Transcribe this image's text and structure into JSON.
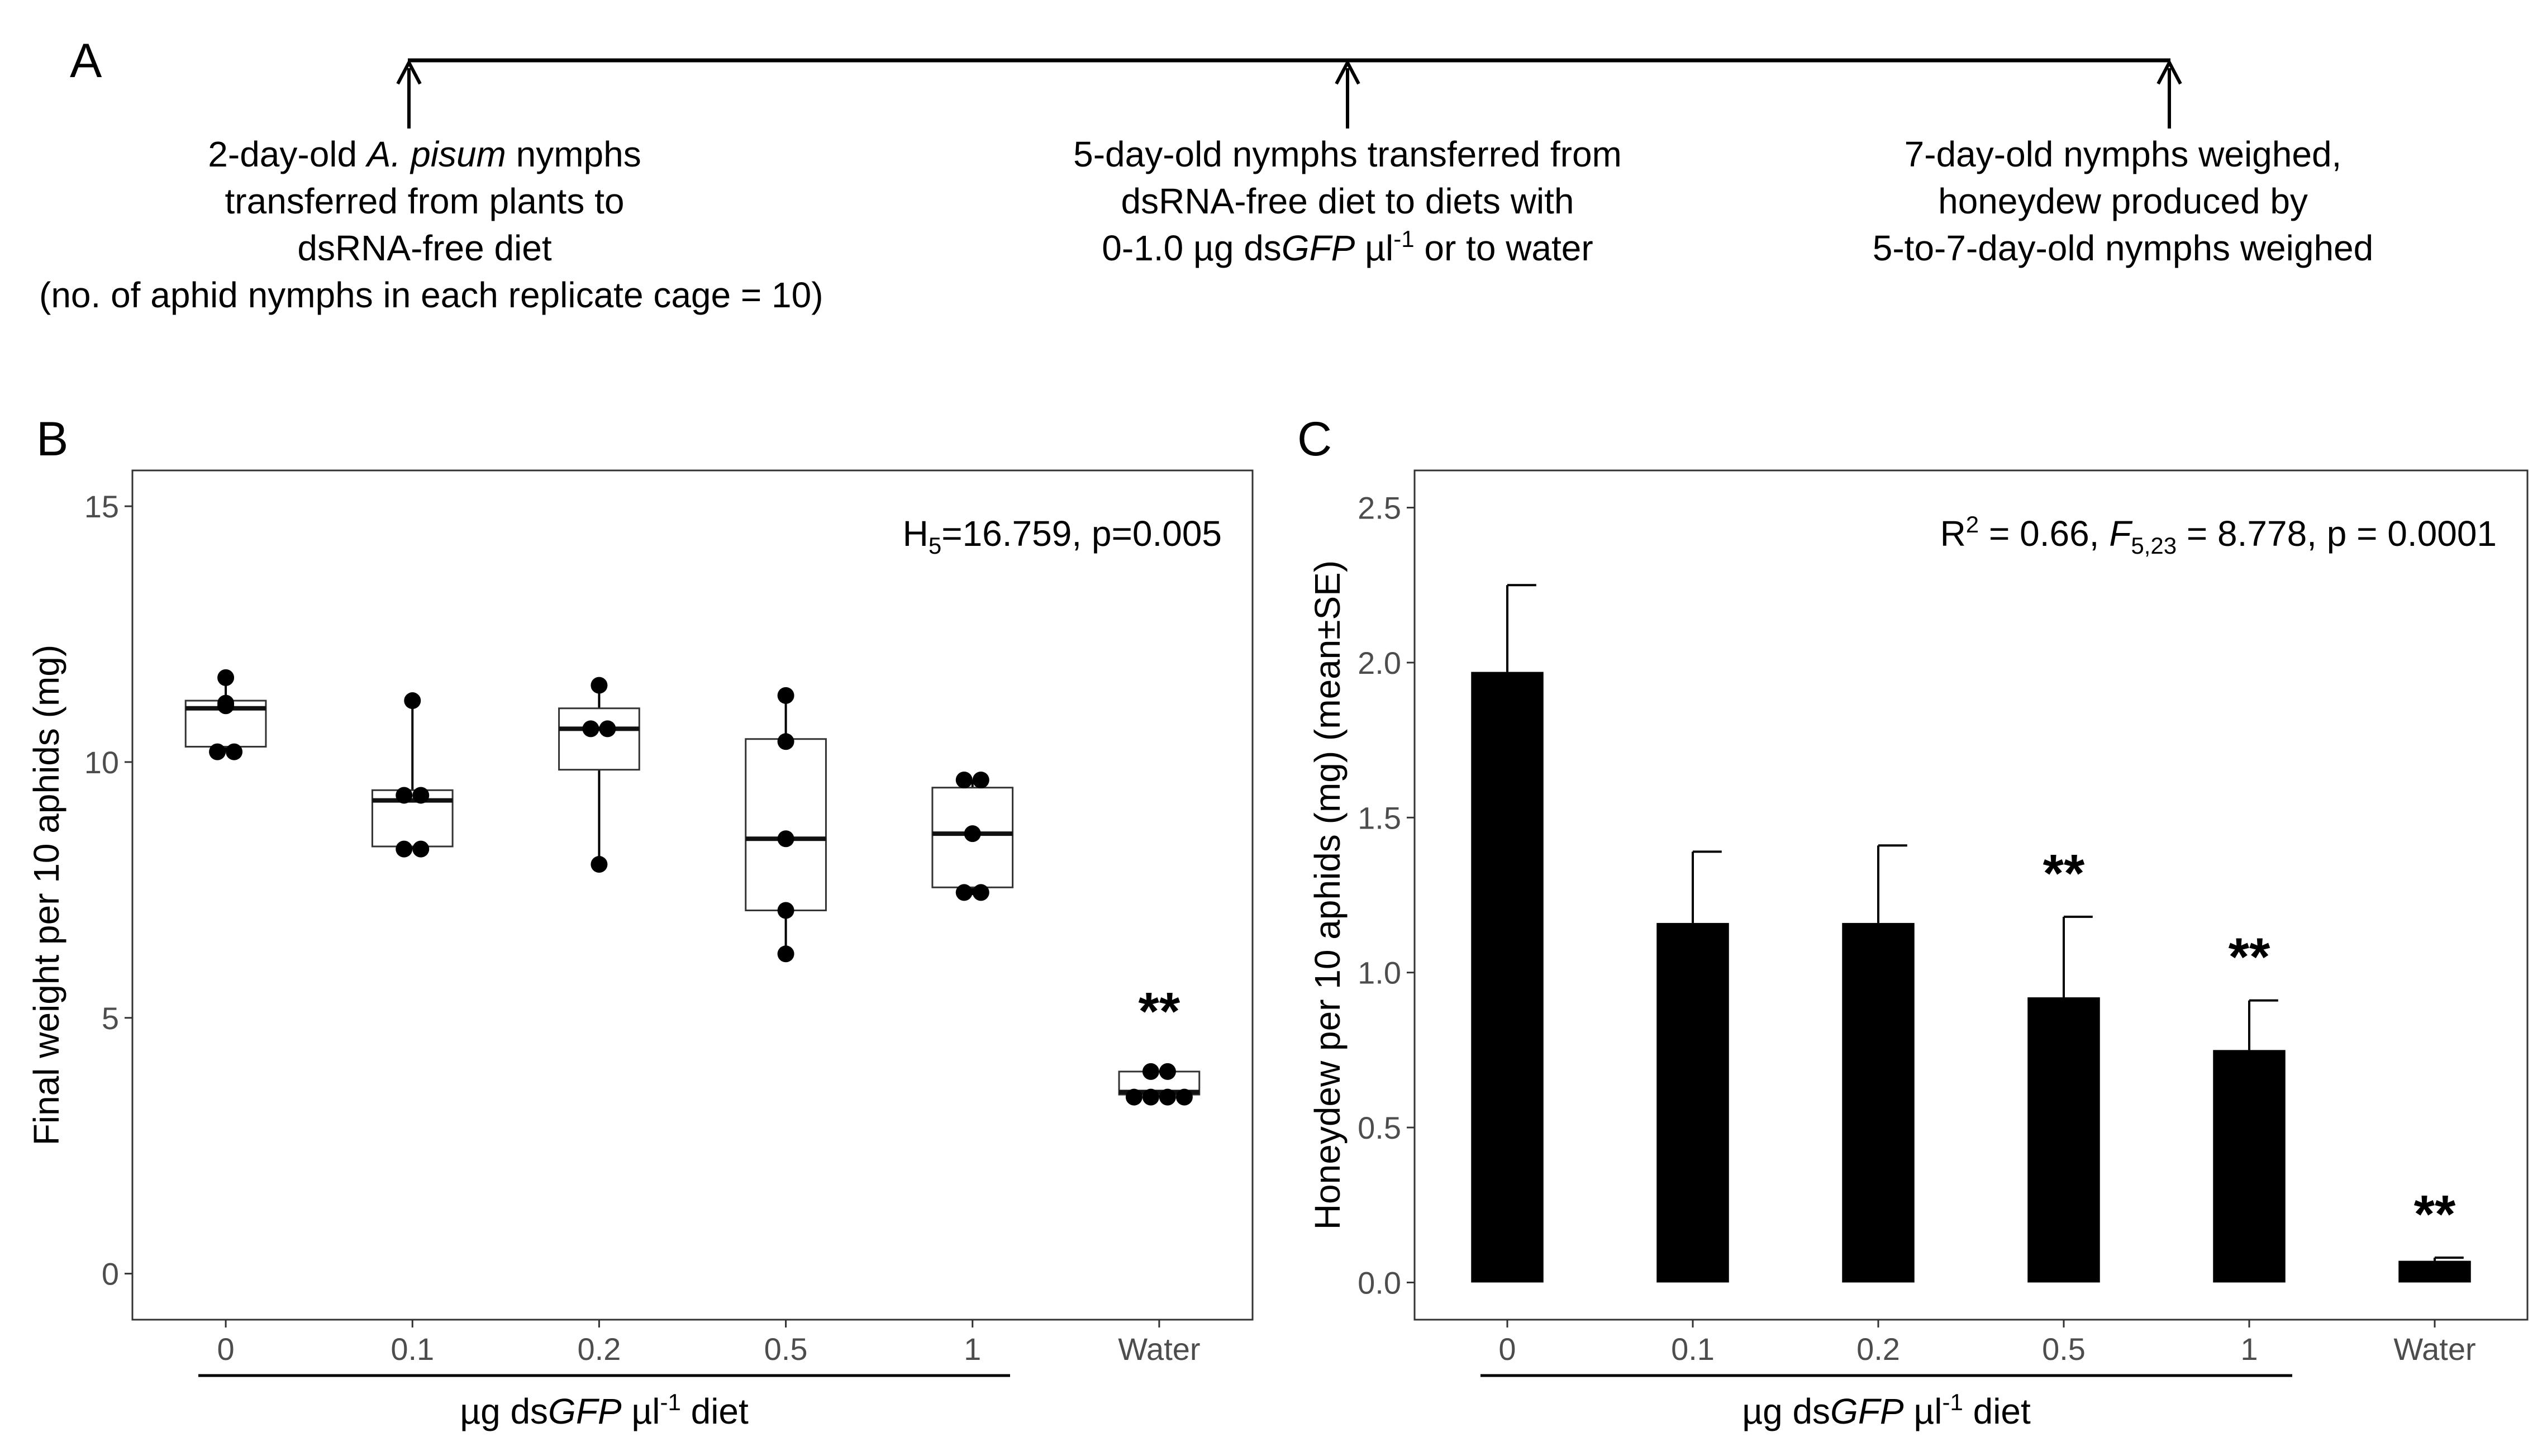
{
  "panel_a": {
    "label": "A",
    "steps": [
      {
        "lines": [
          [
            {
              "t": "2-day-old "
            },
            {
              "t": "A. pisum",
              "i": true
            },
            {
              "t": " nymphs"
            }
          ],
          [
            {
              "t": "transferred from plants to"
            }
          ],
          [
            {
              "t": "dsRNA-free diet"
            }
          ],
          [
            {
              "t": "(no. of aphid nymphs in each replicate cage = 10)"
            }
          ]
        ]
      },
      {
        "lines": [
          [
            {
              "t": "5-day-old nymphs transferred from"
            }
          ],
          [
            {
              "t": "dsRNA-free diet to diets with"
            }
          ],
          [
            {
              "t": "0-1.0 µg ds"
            },
            {
              "t": "GFP",
              "i": true
            },
            {
              "t": " µl"
            },
            {
              "t": "-1",
              "sup": true
            },
            {
              "t": " or to water"
            }
          ]
        ]
      },
      {
        "lines": [
          [
            {
              "t": "7-day-old nymphs weighed,"
            }
          ],
          [
            {
              "t": "honeydew produced by"
            }
          ],
          [
            {
              "t": "5-to-7-day-old nymphs weighed"
            }
          ]
        ]
      }
    ]
  },
  "chart_data": [
    {
      "panel": "B",
      "type": "box",
      "categories": [
        "0",
        "0.1",
        "0.2",
        "0.5",
        "1",
        "Water"
      ],
      "boxes": [
        {
          "min": 10.2,
          "q1": 10.3,
          "median": 11.05,
          "q3": 11.2,
          "max": 11.65,
          "points": [
            11.65,
            11.15,
            11.1,
            10.2,
            10.2
          ]
        },
        {
          "min": 8.3,
          "q1": 8.35,
          "median": 9.25,
          "q3": 9.45,
          "max": 11.2,
          "points": [
            11.2,
            9.35,
            9.35,
            8.3,
            8.3
          ]
        },
        {
          "min": 8.0,
          "q1": 9.85,
          "median": 10.65,
          "q3": 11.05,
          "max": 11.5,
          "points": [
            11.5,
            10.65,
            10.65,
            8.0
          ]
        },
        {
          "min": 6.25,
          "q1": 7.1,
          "median": 8.5,
          "q3": 10.45,
          "max": 11.3,
          "points": [
            11.3,
            10.4,
            8.5,
            7.1,
            6.25
          ]
        },
        {
          "min": 7.4,
          "q1": 7.55,
          "median": 8.6,
          "q3": 9.5,
          "max": 9.65,
          "points": [
            9.65,
            9.65,
            8.6,
            7.45,
            7.45
          ]
        },
        {
          "min": 3.45,
          "q1": 3.5,
          "median": 3.55,
          "q3": 3.95,
          "max": 3.95,
          "points": [
            3.95,
            3.95,
            3.45,
            3.45,
            3.45,
            3.45
          ]
        }
      ],
      "ylim": [
        -0.9,
        15.7
      ],
      "yticks": [
        "0",
        "5",
        "10",
        "15"
      ],
      "ylabel": "Final weight per 10 aphids (mg)",
      "xlabel_parts": [
        {
          "t": "µg ds"
        },
        {
          "t": "GFP",
          "i": true
        },
        {
          "t": " µl"
        },
        {
          "t": "-1",
          "sup": true
        },
        {
          "t": " diet"
        }
      ],
      "stat_parts": [
        {
          "t": "H"
        },
        {
          "t": "5",
          "sub": true
        },
        {
          "t": "=16.759, p=0.005"
        }
      ],
      "significance": [
        {
          "index": 5,
          "label": "**"
        }
      ]
    },
    {
      "panel": "C",
      "type": "bar",
      "categories": [
        "0",
        "0.1",
        "0.2",
        "0.5",
        "1",
        "Water"
      ],
      "values": [
        1.97,
        1.16,
        1.16,
        0.92,
        0.75,
        0.07
      ],
      "errors": [
        0.28,
        0.23,
        0.25,
        0.26,
        0.16,
        0.01
      ],
      "ylim": [
        -0.12,
        2.62
      ],
      "yticks": [
        "0.0",
        "0.5",
        "1.0",
        "1.5",
        "2.0",
        "2.5"
      ],
      "ylabel": "Honeydew per 10 aphids (mg) (mean±SE)",
      "xlabel_parts": [
        {
          "t": "µg ds"
        },
        {
          "t": "GFP",
          "i": true
        },
        {
          "t": " µl"
        },
        {
          "t": "-1",
          "sup": true
        },
        {
          "t": " diet"
        }
      ],
      "stat_parts": [
        {
          "t": "R"
        },
        {
          "t": "2",
          "sup": true
        },
        {
          "t": " = 0.66, "
        },
        {
          "t": "F",
          "i": true
        },
        {
          "t": "5,23",
          "sub": true
        },
        {
          "t": " = 8.778, p = 0.0001"
        }
      ],
      "significance": [
        {
          "index": 3,
          "label": "**"
        },
        {
          "index": 4,
          "label": "**"
        },
        {
          "index": 5,
          "label": "**"
        }
      ]
    }
  ]
}
